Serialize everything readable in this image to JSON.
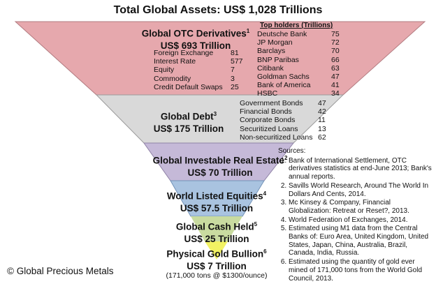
{
  "title": "Total Global Assets: US$ 1,028 Trillions",
  "colors": {
    "otc": "#e6a8ad",
    "debt": "#d9d9d9",
    "real_estate": "#c5b9d8",
    "equities": "#a9c3e0",
    "cash": "#c9dba0",
    "gold": "#f2f263"
  },
  "otc": {
    "name": "Global OTC Derivatives",
    "sup": "1",
    "value": "US$ 693 Trillion",
    "items": [
      {
        "label": "Foreign Exchange",
        "value": "81"
      },
      {
        "label": "Interest Rate",
        "value": "577"
      },
      {
        "label": "Equity",
        "value": "7"
      },
      {
        "label": "Commodity",
        "value": "3"
      },
      {
        "label": "Credit Default Swaps",
        "value": "25"
      }
    ],
    "holders_title": "Top holders (Trillions)",
    "holders": [
      {
        "label": "Deutsche Bank",
        "value": "75"
      },
      {
        "label": "JP Morgan",
        "value": "72"
      },
      {
        "label": "Barclays",
        "value": "70"
      },
      {
        "label": "BNP Paribas",
        "value": "66"
      },
      {
        "label": "Citibank",
        "value": "63"
      },
      {
        "label": "Goldman Sachs",
        "value": "47"
      },
      {
        "label": "Bank of America",
        "value": "41"
      },
      {
        "label": "HSBC",
        "value": "34"
      }
    ]
  },
  "debt": {
    "name": "Global Debt",
    "sup": "3",
    "value": "US$ 175 Trillion",
    "items": [
      {
        "label": "Government Bonds",
        "value": "47"
      },
      {
        "label": "Financial Bonds",
        "value": "42"
      },
      {
        "label": "Corporate Bonds",
        "value": "11"
      },
      {
        "label": "Securitized Loans",
        "value": "13"
      },
      {
        "label": "Non-securitized Loans",
        "value": "62"
      }
    ]
  },
  "real_estate": {
    "name": "Global Investable Real Estate",
    "sup": "2",
    "value": "US$ 70 Trillion"
  },
  "equities": {
    "name": "World Listed Equities",
    "sup": "4",
    "value": "US$ 57.5 Trillion"
  },
  "cash": {
    "name": "Global Cash Held",
    "sup": "5",
    "value": "US$ 25 Trillion"
  },
  "gold": {
    "name": "Physical Gold Bullion",
    "sup": "6",
    "value": "US$ 7 Trillion",
    "note": "(171,000 tons @ $1300/ounce)"
  },
  "sources": {
    "heading": "Sources:",
    "items": [
      "Bank of International Settlement, OTC derivatives statistics at end-June 2013; Bank's annual reports.",
      "Savills World Research, Around The World In Dollars And Cents, 2014.",
      "Mc Kinsey & Company, Financial Globalization: Retreat or Reset?, 2013.",
      "World Federation of Exchanges, 2014.",
      "Estimated using M1 data from the Central Banks of: Euro Area, United Kingdom, United States, Japan, China, Australia, Brazil, Canada, India, Russia.",
      "Estimated using the quantity of gold ever mined of 171,000 tons from the World Gold Council, 2013."
    ]
  },
  "copyright": "© Global Precious Metals"
}
